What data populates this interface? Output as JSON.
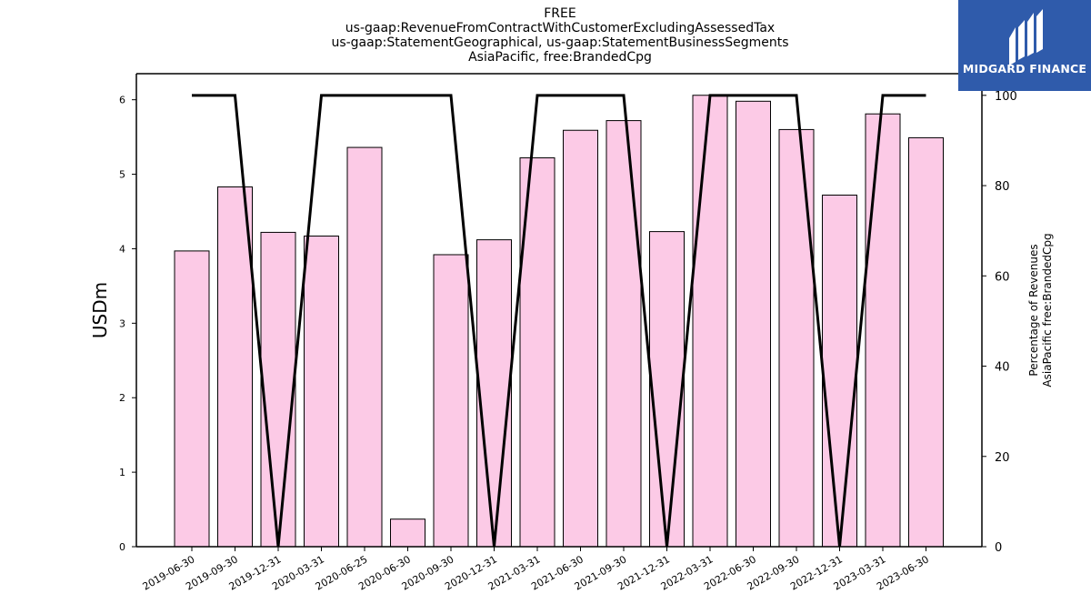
{
  "chart_data": {
    "type": "bar",
    "title_lines": [
      "FREE",
      "us-gaap:RevenueFromContractWithCustomerExcludingAssessedTax",
      "us-gaap:StatementGeographical, us-gaap:StatementBusinessSegments",
      "AsiaPacific, free:BrandedCpg"
    ],
    "ylabel": "USDm",
    "ylabel_right_lines": [
      "Percentage of Revenues",
      "AsiaPacific free:BrandedCpg"
    ],
    "categories": [
      "2019-06-30",
      "2019-09-30",
      "2019-12-31",
      "2020-03-31",
      "2020-06-25",
      "2020-06-30",
      "2020-09-30",
      "2020-12-31",
      "2021-03-31",
      "2021-06-30",
      "2021-09-30",
      "2021-12-31",
      "2022-03-31",
      "2022-06-30",
      "2022-09-30",
      "2022-12-31",
      "2023-03-31",
      "2023-06-30"
    ],
    "values": [
      3.97,
      4.83,
      4.22,
      4.17,
      5.36,
      0.37,
      3.92,
      4.12,
      5.22,
      5.59,
      5.72,
      4.23,
      6.06,
      5.98,
      5.6,
      4.72,
      5.81,
      5.49
    ],
    "ylim": [
      0,
      6.35
    ],
    "yticks": [
      0,
      1,
      2,
      3,
      4,
      5,
      6
    ],
    "line_series": {
      "axis": "right",
      "values": [
        100,
        100,
        0,
        100,
        100,
        null,
        100,
        0,
        100,
        100,
        100,
        0,
        100,
        100,
        100,
        0,
        100,
        100
      ]
    },
    "ylim_right": [
      0,
      104.8
    ],
    "yticks_right": [
      0,
      20,
      40,
      60,
      80,
      100
    ],
    "colors": {
      "bar_fill": "#fccae6",
      "bar_edge": "#000000",
      "line": "#000000"
    },
    "grid": false
  },
  "logo": {
    "text": "MIDGARD FINANCE",
    "bg": "#2f5bab"
  }
}
